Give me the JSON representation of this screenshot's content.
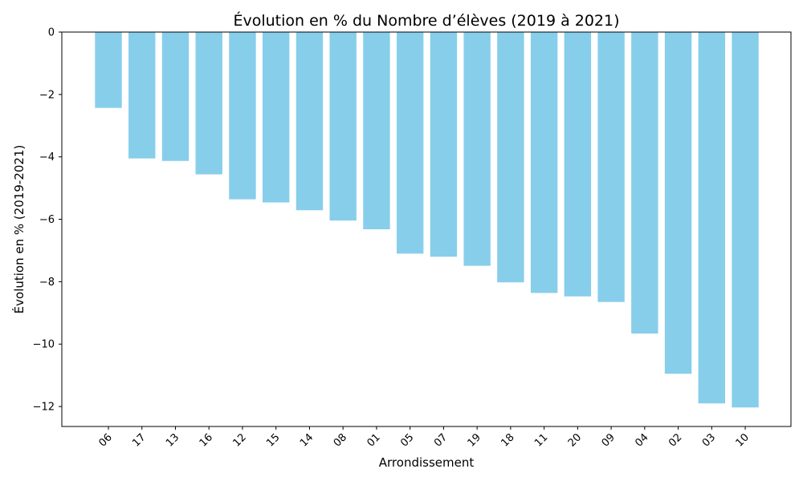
{
  "chart_data": {
    "type": "bar",
    "title": "Évolution en % du Nombre d’élèves (2019 à 2021)",
    "xlabel": "Arrondissement",
    "ylabel": "Évolution en % (2019-2021)",
    "categories": [
      "06",
      "17",
      "13",
      "16",
      "12",
      "15",
      "14",
      "08",
      "01",
      "05",
      "07",
      "19",
      "18",
      "11",
      "20",
      "09",
      "04",
      "02",
      "03",
      "10"
    ],
    "values": [
      -2.43,
      -4.05,
      -4.13,
      -4.56,
      -5.36,
      -5.46,
      -5.71,
      -6.04,
      -6.32,
      -7.1,
      -7.2,
      -7.49,
      -8.02,
      -8.36,
      -8.47,
      -8.65,
      -9.66,
      -10.95,
      -11.9,
      -12.03
    ],
    "yticks": [
      0,
      -2,
      -4,
      -6,
      -8,
      -10,
      -12
    ],
    "ylim": [
      -12.64,
      0
    ],
    "bar_color": "#87ceeb",
    "grid": false,
    "legend": "none"
  }
}
